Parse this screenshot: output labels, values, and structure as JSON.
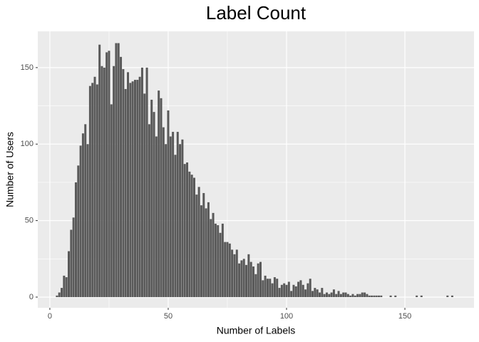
{
  "chart_data": {
    "type": "bar",
    "title": "Label Count",
    "x_label": "Number of Labels",
    "y_label": "Number of Users",
    "x": [
      3,
      4,
      5,
      6,
      7,
      8,
      9,
      10,
      11,
      12,
      13,
      14,
      15,
      16,
      17,
      18,
      19,
      20,
      21,
      22,
      23,
      24,
      25,
      26,
      27,
      28,
      29,
      30,
      31,
      32,
      33,
      34,
      35,
      36,
      37,
      38,
      39,
      40,
      41,
      42,
      43,
      44,
      45,
      46,
      47,
      48,
      49,
      50,
      51,
      52,
      53,
      54,
      55,
      56,
      57,
      58,
      59,
      60,
      61,
      62,
      63,
      64,
      65,
      66,
      67,
      68,
      69,
      70,
      71,
      72,
      73,
      74,
      75,
      76,
      77,
      78,
      79,
      80,
      81,
      82,
      83,
      84,
      85,
      86,
      87,
      88,
      89,
      90,
      91,
      92,
      93,
      94,
      95,
      96,
      97,
      98,
      99,
      100,
      101,
      102,
      103,
      104,
      105,
      106,
      107,
      108,
      109,
      110,
      111,
      112,
      113,
      114,
      115,
      116,
      117,
      118,
      119,
      120,
      121,
      122,
      123,
      124,
      125,
      126,
      127,
      128,
      129,
      130,
      131,
      132,
      133,
      134,
      135,
      136,
      137,
      138,
      139,
      140,
      144,
      146,
      155,
      157,
      168,
      170
    ],
    "values": [
      1,
      3,
      6,
      14,
      13,
      30,
      44,
      52,
      75,
      86,
      99,
      107,
      113,
      100,
      138,
      140,
      144,
      139,
      165,
      151,
      150,
      160,
      161,
      126,
      151,
      166,
      166,
      157,
      149,
      136,
      147,
      140,
      141,
      142,
      142,
      144,
      150,
      133,
      150,
      113,
      129,
      121,
      105,
      135,
      130,
      111,
      100,
      122,
      105,
      108,
      93,
      108,
      100,
      103,
      87,
      88,
      82,
      80,
      78,
      67,
      72,
      60,
      68,
      58,
      62,
      51,
      55,
      48,
      47,
      42,
      48,
      36,
      36,
      35,
      31,
      28,
      31,
      22,
      24,
      25,
      21,
      28,
      23,
      20,
      15,
      22,
      23,
      11,
      14,
      12,
      12,
      9,
      13,
      12,
      6,
      8,
      9,
      8,
      10,
      4,
      8,
      7,
      10,
      11,
      8,
      5,
      9,
      12,
      4,
      6,
      5,
      3,
      6,
      2,
      3,
      2,
      3,
      5,
      2,
      4,
      2,
      3,
      3,
      2,
      1,
      2,
      1,
      2,
      2,
      3,
      3,
      2,
      1,
      1,
      1,
      1,
      1,
      1,
      1,
      1,
      1,
      1,
      1,
      1
    ],
    "color": "#595959",
    "xlim": [
      -5.1,
      179.2
    ],
    "xticks": [
      0,
      50,
      100,
      150
    ],
    "ylim": [
      -7,
      173.7
    ],
    "yticks": [
      0,
      50,
      100,
      150
    ],
    "grid": true
  }
}
